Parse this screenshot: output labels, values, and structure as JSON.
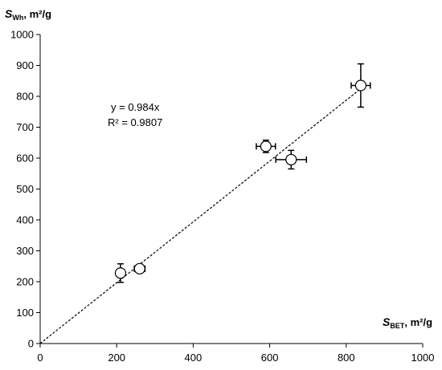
{
  "chart_data": {
    "type": "scatter",
    "title": "",
    "xlabel": {
      "var": "S",
      "sub": "BET",
      "unit": ", m²/g"
    },
    "ylabel": {
      "var": "S",
      "sub": "Wh",
      "unit": ", m²/g"
    },
    "xlim": [
      0,
      1000
    ],
    "ylim": [
      0,
      1000
    ],
    "xticks": [
      "0",
      "200",
      "400",
      "600",
      "800",
      "1000"
    ],
    "yticks": [
      "0",
      "100",
      "200",
      "300",
      "400",
      "500",
      "600",
      "700",
      "800",
      "900",
      "1000"
    ],
    "grid": false,
    "points": [
      {
        "x": 210,
        "y": 228,
        "xerr": 0,
        "yerr": 30
      },
      {
        "x": 260,
        "y": 242,
        "xerr": 14,
        "yerr": 12
      },
      {
        "x": 590,
        "y": 638,
        "xerr": 25,
        "yerr": 20
      },
      {
        "x": 656,
        "y": 595,
        "xerr": 40,
        "yerr": 30
      },
      {
        "x": 838,
        "y": 835,
        "xerr": 25,
        "yerr": 70
      }
    ],
    "trendline": {
      "slope": 0.984,
      "intercept": 0,
      "x_range": [
        0,
        850
      ],
      "style": "dashed"
    },
    "annotations": [
      "y = 0.984x",
      "R² = 0.9807"
    ]
  }
}
